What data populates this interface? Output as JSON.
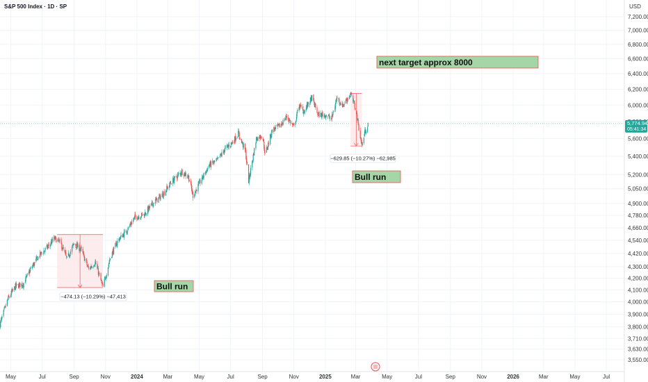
{
  "header": {
    "symbol_title": "S&P 500 Index · 1D · SP",
    "currency": "USD"
  },
  "price_tag": {
    "last_price": "5,774.94",
    "countdown": "05:41:34",
    "color": "#26a69a"
  },
  "colors": {
    "up": "#26a69a",
    "down": "#ef5350",
    "grid": "#f0f3fa",
    "measure_fill": "#fde7e9",
    "measure_line": "#ef5350",
    "note_fill": "#a5d6a7",
    "note_border": "#ef5350"
  },
  "measurements": [
    {
      "label": "−474.13 (−10.29%) −47,413"
    },
    {
      "label": "−629.85 (−10.27%) −62,985"
    }
  ],
  "annotations": [
    {
      "text": "Bull run"
    },
    {
      "text": "Bull run"
    },
    {
      "text": "next target approx 8000"
    }
  ],
  "chart_data": {
    "type": "line",
    "title": "S&P 500 Index · 1D · SP",
    "y_scale": "log",
    "ylim": [
      3470,
      7450
    ],
    "xlim": [
      "2023-04-10",
      "2026-08-05"
    ],
    "x_tick_labels": [
      {
        "date": "2023-05-01",
        "label": "May"
      },
      {
        "date": "2023-07-01",
        "label": "Jul"
      },
      {
        "date": "2023-09-01",
        "label": "Sep"
      },
      {
        "date": "2023-11-01",
        "label": "Nov"
      },
      {
        "date": "2024-01-01",
        "label": "2024"
      },
      {
        "date": "2024-03-01",
        "label": "Mar"
      },
      {
        "date": "2024-05-01",
        "label": "May"
      },
      {
        "date": "2024-07-01",
        "label": "Jul"
      },
      {
        "date": "2024-09-01",
        "label": "Sep"
      },
      {
        "date": "2024-11-01",
        "label": "Nov"
      },
      {
        "date": "2025-01-01",
        "label": "2025"
      },
      {
        "date": "2025-03-01",
        "label": "Mar"
      },
      {
        "date": "2025-05-01",
        "label": "May"
      },
      {
        "date": "2025-07-01",
        "label": "Jul"
      },
      {
        "date": "2025-09-01",
        "label": "Sep"
      },
      {
        "date": "2025-11-01",
        "label": "Nov"
      },
      {
        "date": "2026-01-01",
        "label": "2026"
      },
      {
        "date": "2026-03-01",
        "label": "Mar"
      },
      {
        "date": "2026-05-01",
        "label": "May"
      },
      {
        "date": "2026-07-01",
        "label": "Jul"
      }
    ],
    "y_ticks": [
      {
        "value": 7200,
        "label": "7,200.00"
      },
      {
        "value": 7000,
        "label": "7,000.00"
      },
      {
        "value": 6800,
        "label": "6,800.00"
      },
      {
        "value": 6600,
        "label": "6,600.00"
      },
      {
        "value": 6400,
        "label": "6,400.00"
      },
      {
        "value": 6200,
        "label": "6,200.00"
      },
      {
        "value": 6000,
        "label": "6,000.00"
      },
      {
        "value": 5800,
        "label": "5,800.00"
      },
      {
        "value": 5600,
        "label": "5,600.00"
      },
      {
        "value": 5400,
        "label": "5,400.00"
      },
      {
        "value": 5200,
        "label": "5,200.00"
      },
      {
        "value": 5050,
        "label": "5,050.00"
      },
      {
        "value": 4900,
        "label": "4,900.00"
      },
      {
        "value": 4780,
        "label": "4,780.00"
      },
      {
        "value": 4660,
        "label": "4,660.00"
      },
      {
        "value": 4540,
        "label": "4,540.00"
      },
      {
        "value": 4420,
        "label": "4,420.00"
      },
      {
        "value": 4300,
        "label": "4,300.00"
      },
      {
        "value": 4200,
        "label": "4,200.00"
      },
      {
        "value": 4100,
        "label": "4,100.00"
      },
      {
        "value": 4000,
        "label": "4,000.00"
      },
      {
        "value": 3900,
        "label": "3,900.00"
      },
      {
        "value": 3800,
        "label": "3,800.00"
      },
      {
        "value": 3710,
        "label": "3,710.00"
      },
      {
        "value": 3630,
        "label": "3,630.00"
      },
      {
        "value": 3550,
        "label": "3,550.00"
      }
    ],
    "series": [
      {
        "values": [
          {
            "x": "2023-04-10",
            "y": 3820
          },
          {
            "x": "2023-04-25",
            "y": 4020
          },
          {
            "x": "2023-05-10",
            "y": 4130
          },
          {
            "x": "2023-05-25",
            "y": 4150
          },
          {
            "x": "2023-06-10",
            "y": 4290
          },
          {
            "x": "2023-06-25",
            "y": 4400
          },
          {
            "x": "2023-07-10",
            "y": 4470
          },
          {
            "x": "2023-07-25",
            "y": 4560
          },
          {
            "x": "2023-08-05",
            "y": 4520
          },
          {
            "x": "2023-08-18",
            "y": 4370
          },
          {
            "x": "2023-09-01",
            "y": 4510
          },
          {
            "x": "2023-09-15",
            "y": 4450
          },
          {
            "x": "2023-09-29",
            "y": 4280
          },
          {
            "x": "2023-10-12",
            "y": 4340
          },
          {
            "x": "2023-10-27",
            "y": 4120
          },
          {
            "x": "2023-11-10",
            "y": 4380
          },
          {
            "x": "2023-11-25",
            "y": 4540
          },
          {
            "x": "2023-12-10",
            "y": 4620
          },
          {
            "x": "2023-12-28",
            "y": 4760
          },
          {
            "x": "2024-01-15",
            "y": 4790
          },
          {
            "x": "2024-02-01",
            "y": 4900
          },
          {
            "x": "2024-02-20",
            "y": 4990
          },
          {
            "x": "2024-03-08",
            "y": 5120
          },
          {
            "x": "2024-03-28",
            "y": 5230
          },
          {
            "x": "2024-04-10",
            "y": 5180
          },
          {
            "x": "2024-04-19",
            "y": 4980
          },
          {
            "x": "2024-05-03",
            "y": 5120
          },
          {
            "x": "2024-05-20",
            "y": 5300
          },
          {
            "x": "2024-06-05",
            "y": 5350
          },
          {
            "x": "2024-06-20",
            "y": 5480
          },
          {
            "x": "2024-07-05",
            "y": 5560
          },
          {
            "x": "2024-07-16",
            "y": 5660
          },
          {
            "x": "2024-07-30",
            "y": 5450
          },
          {
            "x": "2024-08-05",
            "y": 5130
          },
          {
            "x": "2024-08-20",
            "y": 5600
          },
          {
            "x": "2024-09-01",
            "y": 5640
          },
          {
            "x": "2024-09-06",
            "y": 5420
          },
          {
            "x": "2024-09-20",
            "y": 5700
          },
          {
            "x": "2024-10-05",
            "y": 5750
          },
          {
            "x": "2024-10-18",
            "y": 5860
          },
          {
            "x": "2024-11-01",
            "y": 5730
          },
          {
            "x": "2024-11-11",
            "y": 6000
          },
          {
            "x": "2024-11-20",
            "y": 5920
          },
          {
            "x": "2024-12-06",
            "y": 6090
          },
          {
            "x": "2024-12-18",
            "y": 5880
          },
          {
            "x": "2025-01-02",
            "y": 5880
          },
          {
            "x": "2025-01-13",
            "y": 5830
          },
          {
            "x": "2025-01-24",
            "y": 6100
          },
          {
            "x": "2025-02-03",
            "y": 5990
          },
          {
            "x": "2025-02-19",
            "y": 6140
          },
          {
            "x": "2025-03-01",
            "y": 5950
          },
          {
            "x": "2025-03-10",
            "y": 5620
          },
          {
            "x": "2025-03-13",
            "y": 5520
          },
          {
            "x": "2025-03-19",
            "y": 5680
          },
          {
            "x": "2025-03-25",
            "y": 5776
          }
        ]
      }
    ]
  }
}
